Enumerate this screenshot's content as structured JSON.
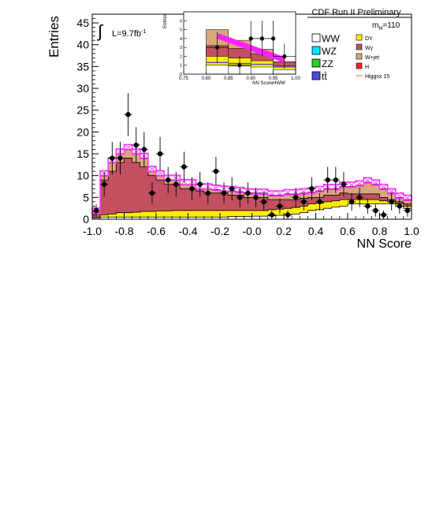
{
  "chart_data": {
    "type": "bar",
    "subtype": "stacked-histogram-with-data-points",
    "title": "CDF Run II Preliminary",
    "xlabel": "NN Score",
    "ylabel": "Entries",
    "luminosity_label": "L=9.7fb",
    "luminosity_superscript": "-1",
    "mass_label": "m",
    "mass_subscript": "H",
    "mass_value": "=110",
    "xlim": [
      -1.0,
      1.0
    ],
    "ylim": [
      0,
      47
    ],
    "x_ticks": [
      "-1.0",
      "-0.8",
      "-0.6",
      "-0.4",
      "-0.2",
      "-0.0",
      "0.2",
      "0.4",
      "0.6",
      "0.8",
      "1.0"
    ],
    "y_ticks": [
      "0",
      "5",
      "10",
      "15",
      "20",
      "25",
      "30",
      "35",
      "40",
      "45"
    ],
    "legend": {
      "placement": "top-right",
      "entries": [
        {
          "label": "WW",
          "color": "#ffffff"
        },
        {
          "label": "WZ",
          "color": "#00e5ff"
        },
        {
          "label": "ZZ",
          "color": "#33cc33"
        },
        {
          "label": "tt̄",
          "color": "#4a4add"
        },
        {
          "label": "DY",
          "color": "#ffee00"
        },
        {
          "label": "Wγ",
          "color": "#c25060"
        },
        {
          "label": "W+jet",
          "color": "#d8a878"
        },
        {
          "label": "H",
          "color": "#ff2222"
        },
        {
          "label": "Higgsx 15",
          "color": "#ff5555",
          "style": "line"
        }
      ]
    },
    "bin_edges_start": -1.0,
    "bin_width": 0.05,
    "backgrounds_cumulative": {
      "WW": [
        0.3,
        0.5,
        0.5,
        0.5,
        0.5,
        0.5,
        0.5,
        0.5,
        0.5,
        0.5,
        0.5,
        0.5,
        0.5,
        0.5,
        0.5,
        0.5,
        0.5,
        0.6,
        0.6,
        0.6,
        0.7,
        0.7,
        0.8,
        0.9,
        1.0,
        1.2,
        1.5,
        2.0,
        2.2,
        2.5,
        2.8,
        3.0,
        3.5,
        3.5,
        3.5,
        3.5,
        3.5,
        3.5,
        3.0,
        2.5
      ],
      "DY": [
        0.5,
        1.0,
        1.2,
        1.5,
        1.5,
        1.6,
        1.8,
        1.8,
        1.9,
        1.9,
        2.0,
        2.0,
        2.0,
        2.0,
        2.0,
        2.0,
        2.0,
        2.0,
        2.0,
        2.0,
        2.0,
        2.0,
        2.2,
        2.3,
        2.5,
        2.7,
        3.0,
        3.5,
        3.7,
        4.0,
        4.2,
        4.5,
        4.5,
        4.5,
        4.5,
        4.5,
        4.2,
        4.0,
        3.5,
        3.0
      ],
      "Wgamma": [
        2,
        9,
        11,
        13,
        14,
        13,
        12,
        10,
        9,
        8,
        8,
        7,
        7,
        6.5,
        6,
        6,
        6,
        5.5,
        5.5,
        5,
        5,
        5,
        4.5,
        4.5,
        4.5,
        4.5,
        4.8,
        5.0,
        5.0,
        5.5,
        5.5,
        6.0,
        5.8,
        5.8,
        5.8,
        5.8,
        5.0,
        4.5,
        4.0,
        3.5
      ],
      "W+jet": [
        2,
        10,
        13,
        15,
        16,
        15,
        14,
        11,
        10,
        9,
        9,
        8,
        8,
        7,
        7,
        6.8,
        6.5,
        6.5,
        6.3,
        6,
        6,
        6,
        5.5,
        5.5,
        5.8,
        5.8,
        6,
        6.2,
        6.5,
        7,
        7,
        7.5,
        7.5,
        7.8,
        8.5,
        8,
        7,
        6,
        5,
        4.5
      ],
      "total": [
        2,
        10.5,
        13.5,
        15.5,
        16.5,
        15.5,
        14.5,
        11.5,
        10.5,
        9.5,
        9.5,
        8.5,
        8.5,
        7.5,
        7.5,
        7.2,
        7,
        6.9,
        6.7,
        6.4,
        6.3,
        6.3,
        5.9,
        5.9,
        6.2,
        6.2,
        6.4,
        6.6,
        6.9,
        7.4,
        7.4,
        7.9,
        7.9,
        8.2,
        8.9,
        8.4,
        7.4,
        6.4,
        5.4,
        4.9
      ]
    },
    "data_points": {
      "x": [
        -0.975,
        -0.925,
        -0.875,
        -0.825,
        -0.775,
        -0.725,
        -0.675,
        -0.625,
        -0.575,
        -0.525,
        -0.475,
        -0.425,
        -0.375,
        -0.325,
        -0.275,
        -0.225,
        -0.175,
        -0.125,
        -0.075,
        -0.025,
        0.025,
        0.075,
        0.125,
        0.175,
        0.225,
        0.275,
        0.325,
        0.375,
        0.425,
        0.475,
        0.525,
        0.575,
        0.625,
        0.675,
        0.725,
        0.775,
        0.825,
        0.875,
        0.925,
        0.975
      ],
      "y": [
        2,
        8,
        14,
        14,
        24,
        17,
        16,
        6,
        15,
        9,
        8,
        12,
        7,
        8,
        6,
        11,
        6,
        7,
        5,
        6,
        5,
        4,
        1,
        3,
        1,
        5,
        4,
        7,
        4,
        9,
        9,
        8,
        4,
        5,
        3,
        2,
        1,
        4,
        3,
        2
      ]
    },
    "inset": {
      "type": "bar",
      "xlabel": "NN ScoreHWW",
      "ylabel": "Entries",
      "xlim": [
        0.75,
        1.0
      ],
      "ylim": [
        0,
        7
      ],
      "x_ticks": [
        "0.75",
        "0.80",
        "0.85",
        "0.90",
        "0.95",
        "1.00"
      ],
      "y_ticks": [
        "0",
        "1",
        "2",
        "3",
        "4",
        "5",
        "6"
      ],
      "bin_edges": [
        0.8,
        0.85,
        0.9,
        0.95,
        1.0
      ],
      "stack_tops": {
        "WW": [
          1.0,
          0.9,
          0.8,
          0.5
        ],
        "DY": [
          2.0,
          1.8,
          1.5,
          0.9
        ],
        "Wgamma": [
          3.2,
          2.9,
          2.3,
          1.4
        ],
        "W+jet": [
          5.0,
          3.8,
          2.8,
          1.4
        ]
      },
      "signal_line": {
        "x": [
          0.825,
          0.975
        ],
        "y": [
          4.3,
          1.6
        ]
      },
      "data_points": {
        "x": [
          0.825,
          0.875,
          0.925,
          0.975
        ],
        "y": [
          3.0,
          1.0,
          4.0,
          2.0
        ],
        "extra": {
          "x": [
            0.9,
            0.95
          ],
          "y": [
            4.0,
            4.0
          ]
        }
      }
    }
  }
}
